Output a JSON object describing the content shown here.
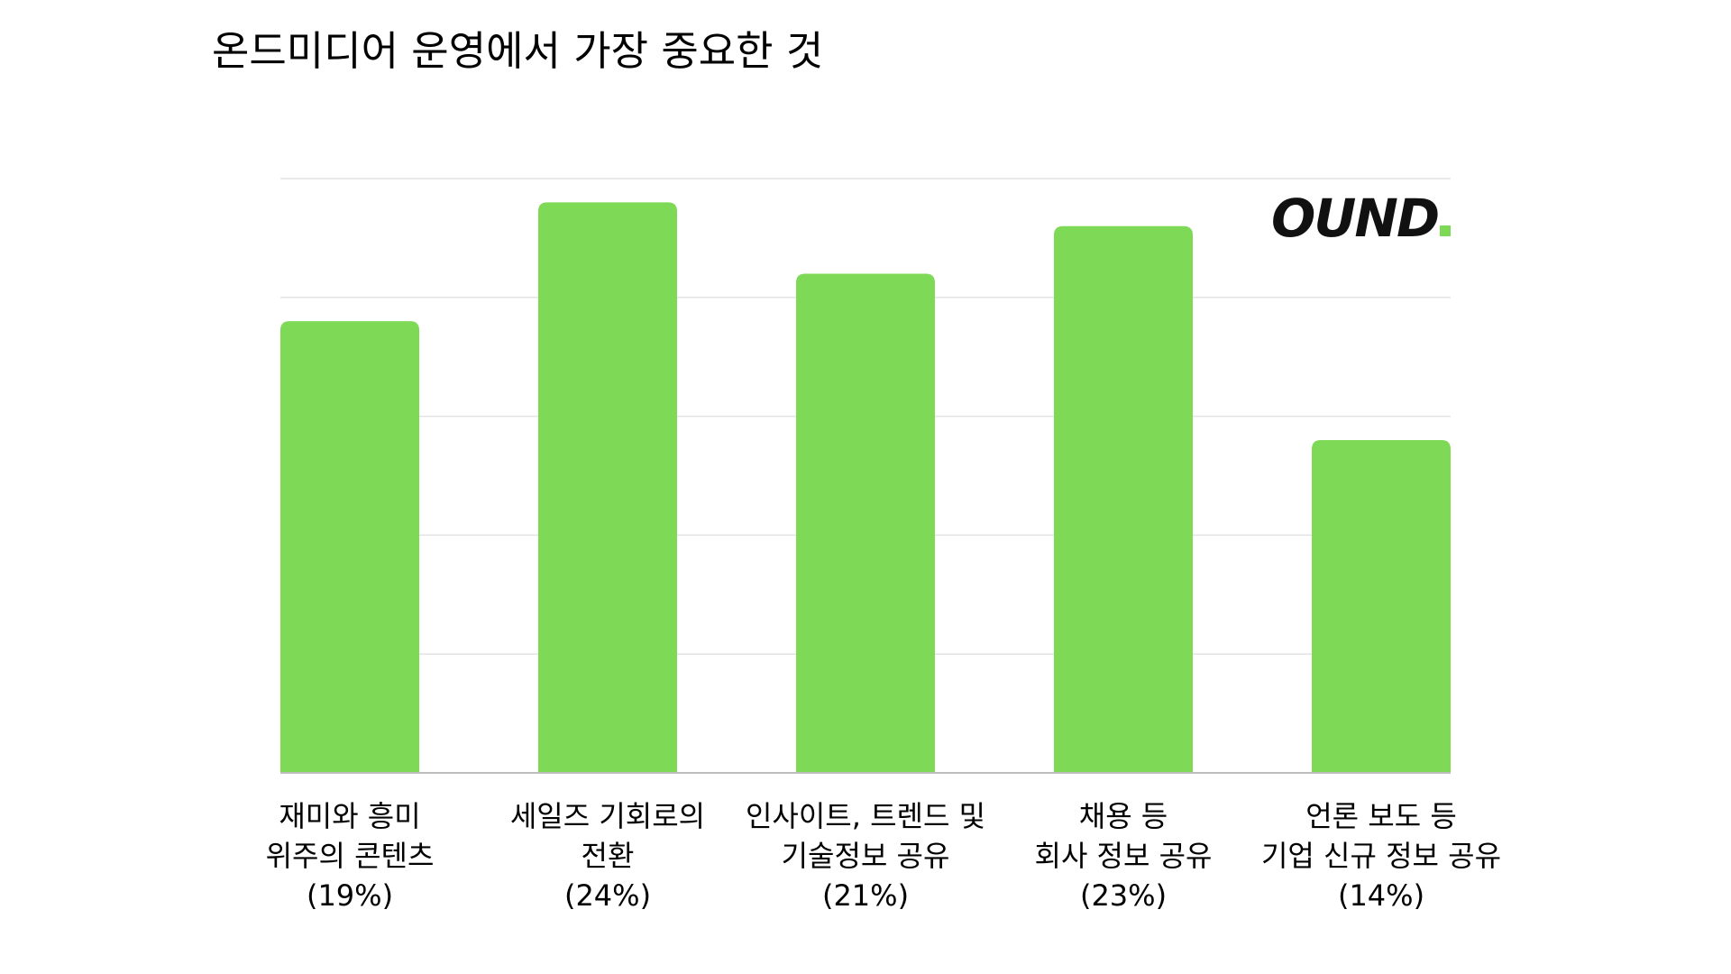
{
  "chart_data": {
    "type": "bar",
    "title": "온드미디어 운영에서 가장 중요한 것",
    "categories": [
      {
        "lines": [
          "재미와 흥미",
          "위주의 콘텐츠",
          "(19%)"
        ]
      },
      {
        "lines": [
          "세일즈 기회로의",
          "전환",
          "(24%)"
        ]
      },
      {
        "lines": [
          "인사이트, 트렌드 및",
          "기술정보 공유",
          "(21%)"
        ]
      },
      {
        "lines": [
          "채용 등",
          "회사 정보 공유",
          "(23%)"
        ]
      },
      {
        "lines": [
          "언론 보도 등",
          "기업 신규 정보 공유",
          "(14%)"
        ]
      }
    ],
    "values": [
      19,
      24,
      21,
      23,
      14
    ],
    "ylim": [
      0,
      25
    ],
    "grid": true,
    "bar_color": "#7ed957"
  },
  "logo": {
    "text": "OUND",
    "dot_color": "#7ed957"
  }
}
